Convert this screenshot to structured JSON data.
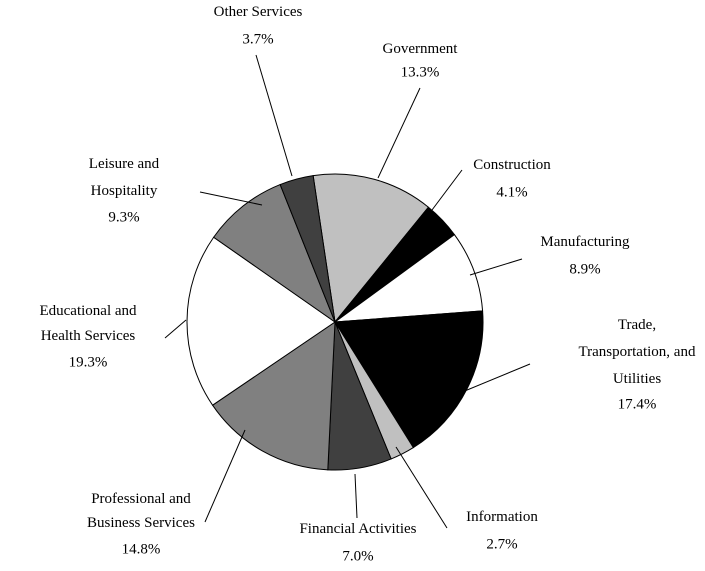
{
  "chart_data": {
    "type": "pie",
    "categories": [
      "Government",
      "Construction",
      "Manufacturing",
      "Trade, Transportation, and Utilities",
      "Information",
      "Financial Activities",
      "Professional and Business Services",
      "Educational and Health Services",
      "Leisure and Hospitality",
      "Other Services"
    ],
    "values": [
      13.3,
      4.1,
      8.9,
      17.4,
      2.7,
      7.0,
      14.8,
      19.3,
      9.3,
      3.7
    ],
    "value_labels": [
      "13.3%",
      "4.1%",
      "8.9%",
      "17.4%",
      "2.7%",
      "7.0%",
      "14.8%",
      "19.3%",
      "9.3%",
      "3.7%"
    ],
    "colors": [
      "#c0c0c0",
      "#000000",
      "#ffffff",
      "#000000",
      "#c0c0c0",
      "#404040",
      "#808080",
      "#ffffff",
      "#808080",
      "#404040"
    ]
  }
}
